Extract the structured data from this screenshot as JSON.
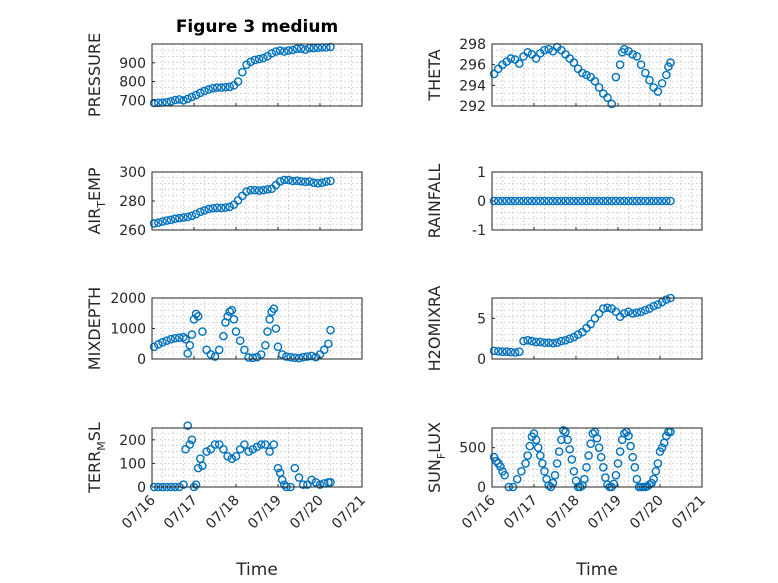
{
  "chart_data": [
    {
      "type": "scatter",
      "title": "Figure 3 medium",
      "ylabel": "PRESSURE",
      "ylim": [
        670,
        1000
      ],
      "yticks": [
        700,
        800,
        900
      ],
      "xlim": [
        0,
        5
      ],
      "xticks": [
        0,
        1,
        2,
        3,
        4,
        5
      ],
      "grid": true,
      "x": [
        0.05,
        0.15,
        0.25,
        0.35,
        0.45,
        0.55,
        0.65,
        0.75,
        0.85,
        0.95,
        1.05,
        1.15,
        1.25,
        1.35,
        1.45,
        1.55,
        1.65,
        1.75,
        1.85,
        1.95,
        2.05,
        2.15,
        2.25,
        2.35,
        2.45,
        2.55,
        2.65,
        2.75,
        2.85,
        2.95,
        3.05,
        3.15,
        3.25,
        3.35,
        3.45,
        3.55,
        3.65,
        3.75,
        3.85,
        3.95,
        4.05,
        4.15,
        4.25
      ],
      "y": [
        686,
        687,
        688,
        690,
        695,
        702,
        705,
        700,
        708,
        718,
        728,
        740,
        750,
        758,
        765,
        768,
        768,
        770,
        772,
        780,
        800,
        850,
        890,
        905,
        915,
        920,
        925,
        935,
        950,
        960,
        965,
        960,
        965,
        968,
        975,
        975,
        970,
        978,
        978,
        980,
        982,
        982,
        984
      ]
    },
    {
      "type": "scatter",
      "title": "",
      "ylabel": "THETA",
      "ylim": [
        292,
        298
      ],
      "yticks": [
        292,
        294,
        296,
        298
      ],
      "xlim": [
        0,
        5
      ],
      "xticks": [
        0,
        1,
        2,
        3,
        4,
        5
      ],
      "grid": true,
      "x": [
        0.05,
        0.15,
        0.25,
        0.35,
        0.45,
        0.55,
        0.65,
        0.75,
        0.85,
        0.95,
        1.05,
        1.15,
        1.25,
        1.35,
        1.45,
        1.55,
        1.65,
        1.75,
        1.85,
        1.95,
        2.05,
        2.15,
        2.25,
        2.35,
        2.45,
        2.55,
        2.65,
        2.75,
        2.85,
        2.95,
        3.05,
        3.1,
        3.15,
        3.25,
        3.35,
        3.45,
        3.55,
        3.65,
        3.75,
        3.85,
        3.95,
        4.05,
        4.15,
        4.2,
        4.25
      ],
      "y": [
        295.1,
        295.6,
        296.0,
        296.3,
        296.6,
        296.5,
        296.1,
        296.8,
        297.2,
        297.0,
        296.6,
        297.1,
        297.4,
        297.5,
        297.3,
        297.7,
        297.4,
        297.0,
        296.6,
        296.2,
        295.6,
        295.2,
        295.0,
        294.8,
        294.4,
        293.8,
        293.2,
        292.8,
        292.2,
        294.8,
        296.0,
        297.2,
        297.5,
        297.3,
        297.0,
        296.8,
        296.0,
        295.2,
        294.5,
        293.8,
        293.4,
        294.2,
        295.0,
        295.8,
        296.2
      ]
    },
    {
      "type": "scatter",
      "title": "",
      "ylabel": "AIR_TEMP",
      "ylim": [
        260,
        300
      ],
      "yticks": [
        260,
        280,
        300
      ],
      "xlim": [
        0,
        5
      ],
      "xticks": [
        0,
        1,
        2,
        3,
        4,
        5
      ],
      "grid": true,
      "x": [
        0.05,
        0.15,
        0.25,
        0.35,
        0.45,
        0.55,
        0.65,
        0.75,
        0.85,
        0.95,
        1.05,
        1.15,
        1.25,
        1.35,
        1.45,
        1.55,
        1.65,
        1.75,
        1.85,
        1.95,
        2.05,
        2.15,
        2.25,
        2.35,
        2.45,
        2.55,
        2.65,
        2.75,
        2.85,
        2.95,
        3.05,
        3.15,
        3.25,
        3.35,
        3.45,
        3.55,
        3.65,
        3.75,
        3.85,
        3.95,
        4.05,
        4.15,
        4.25
      ],
      "y": [
        264.5,
        265,
        265.8,
        266.5,
        267,
        267.8,
        268.2,
        268.6,
        269,
        269.8,
        271,
        272.5,
        273.5,
        274.5,
        275,
        275.3,
        275.2,
        275.5,
        276,
        277.5,
        280.5,
        283.5,
        286.5,
        287.5,
        287.5,
        287.2,
        287.5,
        288,
        288.5,
        291,
        293.5,
        294.5,
        294.5,
        293.8,
        294,
        293.6,
        293.2,
        293.4,
        292.6,
        292.3,
        292.6,
        293.4,
        293.8
      ]
    },
    {
      "type": "scatter",
      "title": "",
      "ylabel": "RAINFALL",
      "ylim": [
        -1,
        1
      ],
      "yticks": [
        -1,
        0,
        1
      ],
      "xlim": [
        0,
        5
      ],
      "xticks": [
        0,
        1,
        2,
        3,
        4,
        5
      ],
      "grid": true,
      "x": [
        0.05,
        0.15,
        0.25,
        0.35,
        0.45,
        0.55,
        0.65,
        0.75,
        0.85,
        0.95,
        1.05,
        1.15,
        1.25,
        1.35,
        1.45,
        1.55,
        1.65,
        1.75,
        1.85,
        1.95,
        2.05,
        2.15,
        2.25,
        2.35,
        2.45,
        2.55,
        2.65,
        2.75,
        2.85,
        2.95,
        3.05,
        3.15,
        3.25,
        3.35,
        3.45,
        3.55,
        3.65,
        3.75,
        3.85,
        3.95,
        4.05,
        4.15,
        4.25
      ],
      "y": [
        0,
        0,
        0,
        0,
        0,
        0,
        0,
        0,
        0,
        0,
        0,
        0,
        0,
        0,
        0,
        0,
        0,
        0,
        0,
        0,
        0,
        0,
        0,
        0,
        0,
        0,
        0,
        0,
        0,
        0,
        0,
        0,
        0,
        0,
        0,
        0,
        0,
        0,
        0,
        0,
        0,
        0,
        0
      ]
    },
    {
      "type": "scatter",
      "title": "",
      "ylabel": "MIXDEPTH",
      "ylim": [
        0,
        2000
      ],
      "yticks": [
        0,
        1000,
        2000
      ],
      "xlim": [
        0,
        5
      ],
      "xticks": [
        0,
        1,
        2,
        3,
        4,
        5
      ],
      "grid": true,
      "x": [
        0.05,
        0.15,
        0.25,
        0.35,
        0.45,
        0.55,
        0.65,
        0.75,
        0.8,
        0.85,
        0.9,
        0.95,
        1.0,
        1.05,
        1.1,
        1.2,
        1.3,
        1.4,
        1.5,
        1.6,
        1.7,
        1.75,
        1.8,
        1.85,
        1.9,
        1.95,
        2.0,
        2.1,
        2.2,
        2.3,
        2.4,
        2.5,
        2.6,
        2.7,
        2.75,
        2.8,
        2.85,
        2.9,
        2.95,
        3.0,
        3.1,
        3.2,
        3.3,
        3.4,
        3.5,
        3.6,
        3.7,
        3.8,
        3.9,
        4.0,
        4.1,
        4.2,
        4.25
      ],
      "y": [
        400,
        480,
        550,
        600,
        650,
        680,
        700,
        720,
        650,
        180,
        450,
        800,
        1300,
        1480,
        1400,
        900,
        300,
        150,
        80,
        300,
        750,
        1200,
        1400,
        1550,
        1600,
        1300,
        900,
        600,
        300,
        50,
        40,
        60,
        150,
        450,
        900,
        1300,
        1550,
        1650,
        1000,
        400,
        150,
        80,
        60,
        40,
        30,
        60,
        80,
        100,
        60,
        150,
        300,
        500,
        950
      ]
    },
    {
      "type": "scatter",
      "title": "",
      "ylabel": "H2OMIXRA",
      "ylim": [
        0,
        7.5
      ],
      "yticks": [
        0,
        5
      ],
      "xlim": [
        0,
        5
      ],
      "xticks": [
        0,
        1,
        2,
        3,
        4,
        5
      ],
      "grid": true,
      "x": [
        0.05,
        0.15,
        0.25,
        0.35,
        0.45,
        0.55,
        0.65,
        0.75,
        0.85,
        0.95,
        1.05,
        1.15,
        1.25,
        1.35,
        1.45,
        1.55,
        1.65,
        1.75,
        1.85,
        1.95,
        2.05,
        2.15,
        2.25,
        2.35,
        2.45,
        2.55,
        2.65,
        2.75,
        2.85,
        2.95,
        3.05,
        3.15,
        3.25,
        3.35,
        3.45,
        3.55,
        3.65,
        3.75,
        3.85,
        3.95,
        4.05,
        4.15,
        4.25
      ],
      "y": [
        1.0,
        0.95,
        0.9,
        0.9,
        0.85,
        0.8,
        0.9,
        2.2,
        2.3,
        2.2,
        2.1,
        2.1,
        2.0,
        2.0,
        1.95,
        2.0,
        2.2,
        2.3,
        2.5,
        2.7,
        3.0,
        3.3,
        3.8,
        4.3,
        5.0,
        5.6,
        6.2,
        6.3,
        6.2,
        5.8,
        5.2,
        5.6,
        5.8,
        5.6,
        5.7,
        5.8,
        6.0,
        6.2,
        6.5,
        6.7,
        7.0,
        7.3,
        7.5
      ]
    },
    {
      "type": "scatter",
      "title": "",
      "ylabel": "TERR_MSL",
      "ylim": [
        0,
        250
      ],
      "yticks": [
        0,
        100,
        200
      ],
      "xlim": [
        0,
        5
      ],
      "xticks": [
        0,
        1,
        2,
        3,
        4,
        5
      ],
      "grid": true,
      "x": [
        0.05,
        0.15,
        0.25,
        0.35,
        0.45,
        0.55,
        0.65,
        0.75,
        0.8,
        0.85,
        0.9,
        0.95,
        1.0,
        1.05,
        1.1,
        1.15,
        1.2,
        1.3,
        1.4,
        1.5,
        1.6,
        1.7,
        1.8,
        1.9,
        2.0,
        2.1,
        2.2,
        2.3,
        2.4,
        2.5,
        2.6,
        2.7,
        2.8,
        2.9,
        3.0,
        3.05,
        3.1,
        3.15,
        3.2,
        3.3,
        3.4,
        3.5,
        3.6,
        3.7,
        3.8,
        3.9,
        4.0,
        4.1,
        4.2,
        4.25
      ],
      "y": [
        0,
        0,
        0,
        0,
        0,
        0,
        0,
        10,
        160,
        260,
        180,
        200,
        0,
        10,
        80,
        120,
        90,
        150,
        160,
        180,
        180,
        160,
        130,
        120,
        130,
        160,
        180,
        150,
        160,
        170,
        180,
        180,
        150,
        180,
        80,
        60,
        30,
        10,
        0,
        0,
        80,
        40,
        10,
        10,
        30,
        20,
        10,
        15,
        20,
        20
      ]
    },
    {
      "type": "scatter",
      "title": "",
      "ylabel": "SUN_FLUX",
      "ylim": [
        0,
        750
      ],
      "yticks": [
        0,
        500
      ],
      "xlim": [
        0,
        5
      ],
      "xticks": [
        0,
        1,
        2,
        3,
        4,
        5
      ],
      "xticklabels": [
        "07/16",
        "07/17",
        "07/18",
        "07/19",
        "07/20",
        "07/21"
      ],
      "grid": true,
      "x": [
        0.05,
        0.1,
        0.15,
        0.2,
        0.25,
        0.3,
        0.4,
        0.5,
        0.6,
        0.7,
        0.8,
        0.85,
        0.9,
        0.95,
        1.0,
        1.05,
        1.1,
        1.15,
        1.2,
        1.25,
        1.3,
        1.35,
        1.4,
        1.45,
        1.5,
        1.55,
        1.6,
        1.65,
        1.7,
        1.75,
        1.8,
        1.85,
        1.9,
        1.95,
        2.0,
        2.05,
        2.1,
        2.15,
        2.2,
        2.25,
        2.3,
        2.35,
        2.4,
        2.45,
        2.5,
        2.55,
        2.6,
        2.65,
        2.7,
        2.75,
        2.8,
        2.85,
        2.9,
        2.95,
        3.0,
        3.05,
        3.1,
        3.15,
        3.2,
        3.25,
        3.3,
        3.35,
        3.4,
        3.45,
        3.5,
        3.55,
        3.6,
        3.65,
        3.7,
        3.75,
        3.8,
        3.85,
        3.9,
        3.95,
        4.0,
        4.05,
        4.1,
        4.15,
        4.2,
        4.25
      ],
      "y": [
        380,
        330,
        300,
        260,
        200,
        150,
        0,
        0,
        100,
        200,
        300,
        400,
        520,
        640,
        680,
        600,
        500,
        400,
        300,
        200,
        100,
        20,
        0,
        50,
        150,
        300,
        450,
        600,
        720,
        700,
        600,
        480,
        350,
        200,
        80,
        0,
        0,
        20,
        100,
        250,
        400,
        550,
        680,
        700,
        620,
        500,
        380,
        250,
        120,
        30,
        0,
        0,
        40,
        150,
        300,
        450,
        600,
        680,
        700,
        650,
        520,
        380,
        250,
        100,
        0,
        0,
        0,
        0,
        10,
        30,
        50,
        100,
        200,
        300,
        450,
        500,
        560,
        650,
        700,
        700
      ]
    }
  ]
}
